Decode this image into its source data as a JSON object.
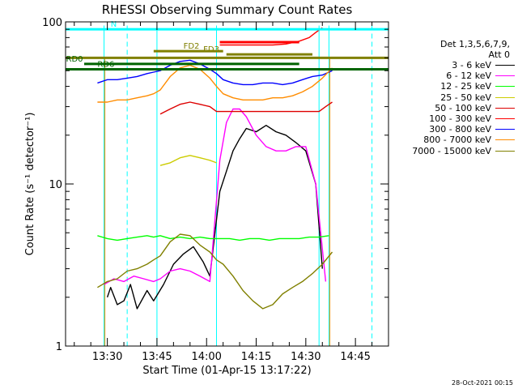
{
  "chart_data": {
    "type": "line",
    "title": "RHESSI Observing Summary Count Rates",
    "xlabel": "Start Time (01-Apr-15 13:17:22)",
    "ylabel": "Count Rate (s⁻¹ detector⁻¹)",
    "xlim": [
      "13:17:22",
      "14:55:00"
    ],
    "ylim": [
      1,
      100
    ],
    "yscale": "log",
    "x_tick_labels": [
      "13:30",
      "13:45",
      "14:00",
      "14:15",
      "14:30",
      "14:45"
    ],
    "y_tick_labels": [
      "1",
      "10",
      "100"
    ],
    "legend_title": [
      "Det 1,3,5,6,7,9,",
      "Att 0"
    ],
    "legend_position": "right",
    "series": [
      {
        "name": "3 - 6 keV",
        "color": "#000000",
        "points": [
          [
            "13:30:00",
            2.0
          ],
          [
            "13:31:00",
            2.3
          ],
          [
            "13:33:00",
            1.8
          ],
          [
            "13:35:00",
            1.9
          ],
          [
            "13:37:00",
            2.4
          ],
          [
            "13:39:00",
            1.7
          ],
          [
            "13:42:00",
            2.2
          ],
          [
            "13:44:00",
            1.9
          ],
          [
            "13:47:00",
            2.4
          ],
          [
            "13:50:00",
            3.2
          ],
          [
            "13:53:00",
            3.7
          ],
          [
            "13:56:00",
            4.1
          ],
          [
            "13:59:00",
            3.3
          ],
          [
            "14:01:00",
            2.7
          ],
          [
            "14:04:00",
            9.0
          ],
          [
            "14:06:00",
            12
          ],
          [
            "14:08:00",
            16
          ],
          [
            "14:10:00",
            19
          ],
          [
            "14:12:00",
            22
          ],
          [
            "14:15:00",
            21
          ],
          [
            "14:18:00",
            23
          ],
          [
            "14:21:00",
            21
          ],
          [
            "14:24:00",
            20
          ],
          [
            "14:27:00",
            18
          ],
          [
            "14:30:00",
            16
          ],
          [
            "14:33:00",
            10
          ],
          [
            "14:35:00",
            3
          ]
        ]
      },
      {
        "name": "6 - 12 keV",
        "color": "#ff00ff",
        "points": [
          [
            "13:29:00",
            2.4
          ],
          [
            "13:32:00",
            2.6
          ],
          [
            "13:35:00",
            2.5
          ],
          [
            "13:38:00",
            2.7
          ],
          [
            "13:41:00",
            2.6
          ],
          [
            "13:44:00",
            2.5
          ],
          [
            "13:46:00",
            2.6
          ],
          [
            "13:49:00",
            2.9
          ],
          [
            "13:52:00",
            3.0
          ],
          [
            "13:55:00",
            2.9
          ],
          [
            "13:58:00",
            2.7
          ],
          [
            "14:01:00",
            2.5
          ],
          [
            "14:04:00",
            14
          ],
          [
            "14:06:00",
            24
          ],
          [
            "14:08:00",
            29
          ],
          [
            "14:10:00",
            29
          ],
          [
            "14:12:00",
            26
          ],
          [
            "14:15:00",
            20
          ],
          [
            "14:18:00",
            17
          ],
          [
            "14:21:00",
            16
          ],
          [
            "14:24:00",
            16
          ],
          [
            "14:27:00",
            17
          ],
          [
            "14:30:00",
            17
          ],
          [
            "14:33:00",
            10
          ],
          [
            "14:36:00",
            2.5
          ]
        ]
      },
      {
        "name": "12 - 25 keV",
        "color": "#00ff00",
        "points": [
          [
            "13:27:00",
            4.8
          ],
          [
            "13:30:00",
            4.6
          ],
          [
            "13:33:00",
            4.5
          ],
          [
            "13:36:00",
            4.6
          ],
          [
            "13:39:00",
            4.7
          ],
          [
            "13:42:00",
            4.8
          ],
          [
            "13:44:00",
            4.7
          ],
          [
            "13:46:00",
            4.8
          ],
          [
            "13:49:00",
            4.6
          ],
          [
            "13:52:00",
            4.7
          ],
          [
            "13:55:00",
            4.6
          ],
          [
            "13:58:00",
            4.7
          ],
          [
            "14:01:00",
            4.6
          ],
          [
            "14:04:00",
            4.6
          ],
          [
            "14:07:00",
            4.6
          ],
          [
            "14:10:00",
            4.5
          ],
          [
            "14:13:00",
            4.6
          ],
          [
            "14:16:00",
            4.6
          ],
          [
            "14:19:00",
            4.5
          ],
          [
            "14:22:00",
            4.6
          ],
          [
            "14:25:00",
            4.6
          ],
          [
            "14:28:00",
            4.6
          ],
          [
            "14:31:00",
            4.7
          ],
          [
            "14:34:00",
            4.7
          ],
          [
            "14:37:00",
            4.8
          ]
        ]
      },
      {
        "name": "25 - 50 keV",
        "color": "#cccc00",
        "points": [
          [
            "13:46:00",
            13.0
          ],
          [
            "13:49:00",
            13.5
          ],
          [
            "13:52:00",
            14.5
          ],
          [
            "13:55:00",
            15.0
          ],
          [
            "13:58:00",
            14.5
          ],
          [
            "14:01:00",
            14.0
          ],
          [
            "14:03:00",
            13.5
          ]
        ]
      },
      {
        "name": "50 - 100 keV",
        "color": "#dd0000",
        "points": [
          [
            "13:46:00",
            27
          ],
          [
            "13:49:00",
            29
          ],
          [
            "13:52:00",
            31
          ],
          [
            "13:55:00",
            32
          ],
          [
            "13:58:00",
            31
          ],
          [
            "14:01:00",
            30
          ],
          [
            "14:03:00",
            28
          ],
          [
            "14:34:00",
            28
          ],
          [
            "14:36:00",
            30
          ],
          [
            "14:38:00",
            32
          ]
        ]
      },
      {
        "name": "100 - 300 keV",
        "color": "#ff0000",
        "points": [
          [
            "14:04:00",
            72
          ],
          [
            "14:08:00",
            72
          ],
          [
            "14:12:00",
            72
          ],
          [
            "14:16:00",
            72
          ],
          [
            "14:20:00",
            72
          ],
          [
            "14:24:00",
            73
          ],
          [
            "14:28:00",
            76
          ],
          [
            "14:31:00",
            80
          ],
          [
            "14:33:00",
            86
          ],
          [
            "14:35:00",
            92
          ]
        ]
      },
      {
        "name": "300 - 800 keV",
        "color": "#0000ff",
        "points": [
          [
            "13:27:00",
            42
          ],
          [
            "13:30:00",
            44
          ],
          [
            "13:33:00",
            44
          ],
          [
            "13:36:00",
            45
          ],
          [
            "13:39:00",
            46
          ],
          [
            "13:42:00",
            48
          ],
          [
            "13:44:00",
            49
          ],
          [
            "13:46:00",
            50
          ],
          [
            "13:49:00",
            54
          ],
          [
            "13:52:00",
            57
          ],
          [
            "13:55:00",
            58
          ],
          [
            "13:58:00",
            55
          ],
          [
            "14:01:00",
            51
          ],
          [
            "14:03:00",
            48
          ],
          [
            "14:05:00",
            44
          ],
          [
            "14:08:00",
            42
          ],
          [
            "14:11:00",
            41
          ],
          [
            "14:14:00",
            41
          ],
          [
            "14:17:00",
            42
          ],
          [
            "14:20:00",
            42
          ],
          [
            "14:23:00",
            41
          ],
          [
            "14:26:00",
            42
          ],
          [
            "14:29:00",
            44
          ],
          [
            "14:32:00",
            46
          ],
          [
            "14:35:00",
            47
          ],
          [
            "14:38:00",
            50
          ]
        ]
      },
      {
        "name": "800 - 7000 keV",
        "color": "#ff8c00",
        "points": [
          [
            "13:27:00",
            32
          ],
          [
            "13:30:00",
            32
          ],
          [
            "13:33:00",
            33
          ],
          [
            "13:36:00",
            33
          ],
          [
            "13:39:00",
            34
          ],
          [
            "13:42:00",
            35
          ],
          [
            "13:44:00",
            36
          ],
          [
            "13:46:00",
            38
          ],
          [
            "13:49:00",
            46
          ],
          [
            "13:52:00",
            52
          ],
          [
            "13:55:00",
            54
          ],
          [
            "13:58:00",
            51
          ],
          [
            "14:01:00",
            45
          ],
          [
            "14:03:00",
            40
          ],
          [
            "14:05:00",
            36
          ],
          [
            "14:08:00",
            34
          ],
          [
            "14:11:00",
            33
          ],
          [
            "14:14:00",
            33
          ],
          [
            "14:17:00",
            33
          ],
          [
            "14:20:00",
            34
          ],
          [
            "14:23:00",
            34
          ],
          [
            "14:26:00",
            35
          ],
          [
            "14:29:00",
            37
          ],
          [
            "14:32:00",
            40
          ],
          [
            "14:35:00",
            45
          ],
          [
            "14:38:00",
            52
          ]
        ]
      },
      {
        "name": "7000 - 15000 keV",
        "color": "#808000",
        "points": [
          [
            "13:27:00",
            2.3
          ],
          [
            "13:30:00",
            2.5
          ],
          [
            "13:33:00",
            2.6
          ],
          [
            "13:36:00",
            2.9
          ],
          [
            "13:39:00",
            3.0
          ],
          [
            "13:42:00",
            3.2
          ],
          [
            "13:44:00",
            3.4
          ],
          [
            "13:46:00",
            3.6
          ],
          [
            "13:49:00",
            4.4
          ],
          [
            "13:52:00",
            4.9
          ],
          [
            "13:55:00",
            4.8
          ],
          [
            "13:58:00",
            4.2
          ],
          [
            "14:01:00",
            3.8
          ],
          [
            "14:03:00",
            3.4
          ],
          [
            "14:05:00",
            3.2
          ],
          [
            "14:08:00",
            2.7
          ],
          [
            "14:11:00",
            2.2
          ],
          [
            "14:14:00",
            1.9
          ],
          [
            "14:17:00",
            1.7
          ],
          [
            "14:20:00",
            1.8
          ],
          [
            "14:23:00",
            2.1
          ],
          [
            "14:26:00",
            2.3
          ],
          [
            "14:29:00",
            2.5
          ],
          [
            "14:32:00",
            2.8
          ],
          [
            "14:35:00",
            3.2
          ],
          [
            "14:38:00",
            3.8
          ]
        ]
      }
    ],
    "flags": [
      {
        "label": "N",
        "color": "#00ffff",
        "y": 90,
        "start": "13:17:22",
        "end": "14:55:00",
        "label_at": "13:31:00"
      },
      {
        "label": "",
        "color": "#ff0000",
        "y": 75,
        "start": "14:04:00",
        "end": "14:28:00"
      },
      {
        "label": "FD2",
        "color": "#808000",
        "y": 66,
        "start": "13:44:00",
        "end": "14:05:00",
        "label_at": "13:53:00"
      },
      {
        "label": "FD3",
        "color": "#808000",
        "y": 63,
        "start": "14:06:00",
        "end": "14:32:00",
        "label_at": "13:59:00"
      },
      {
        "label": "",
        "color": "#808000",
        "y": 60,
        "start": "13:17:22",
        "end": "14:55:00"
      },
      {
        "label": "RD0",
        "color": "#006400",
        "y": 55,
        "start": "13:23:00",
        "end": "14:28:00",
        "label_at": "13:17:30"
      },
      {
        "label": "RD6",
        "color": "#006400",
        "y": 51,
        "start": "13:17:22",
        "end": "14:55:00",
        "label_at": "13:27:00"
      }
    ],
    "night_lines": [
      "13:29:00",
      "13:45:00",
      "14:03:00",
      "14:34:00",
      "14:37:00"
    ],
    "dashed_lines": [
      "13:36:00",
      "14:50:00"
    ]
  },
  "legend": {
    "title": [
      "Det 1,3,5,6,7,9,",
      "Att 0"
    ]
  },
  "timestamp": "28-Oct-2021 00:15"
}
